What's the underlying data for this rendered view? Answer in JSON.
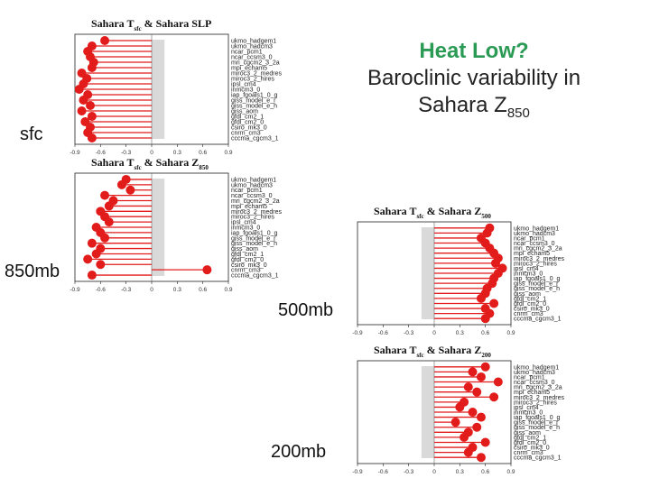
{
  "title": {
    "line1": "Heat Low?",
    "line2": "Baroclinic variability in",
    "line3_prefix": "Sahara Z",
    "line3_sub": "850"
  },
  "labels": {
    "sfc": "sfc",
    "mb850": "850mb",
    "mb500": "500mb",
    "mb200": "200mb"
  },
  "colors": {
    "stem": "#e21b1b",
    "dot": "#e21b1b",
    "band": "#d9d9d9",
    "title_green": "#2a9a55"
  },
  "chart_data": [
    {
      "type": "lollipop",
      "title_pre": "Sahara T",
      "title_sub1": "sfc",
      "title_mid": " & Sahara SLP",
      "title_sub2": "",
      "xlim": [
        -0.9,
        0.9
      ],
      "xticks": [
        "-0.9",
        "-0.6",
        "-0.3",
        "0",
        "0.3",
        "0.6",
        "0.9"
      ],
      "band": [
        0.0,
        0.15
      ],
      "models": [
        "ukmo_hadgem1",
        "ukmo_hadcm3",
        "ncar_pcm1",
        "ncar_ccsm3_0",
        "mri_cgcm2_3_2a",
        "mpi_echam5",
        "miroc3_2_medres",
        "miroc3_2_hires",
        "ipsl_cm4",
        "inmcm3_0",
        "iap_fgoals1_0_g",
        "giss_model_e_r",
        "giss_model_e_h",
        "giss_aom",
        "gfdl_cm2_1",
        "gfdl_cm2_0",
        "csiro_mk3_0",
        "cnrm_cm3",
        "cccma_cgcm3_1"
      ],
      "values": [
        -0.55,
        -0.7,
        -0.75,
        -0.72,
        -0.68,
        -0.7,
        -0.82,
        -0.76,
        -0.8,
        -0.85,
        -0.75,
        -0.8,
        -0.72,
        -0.82,
        -0.7,
        -0.78,
        -0.72,
        -0.75,
        -0.7
      ]
    },
    {
      "type": "lollipop",
      "title_pre": "Sahara T",
      "title_sub1": "sfc",
      "title_mid": " & Sahara Z",
      "title_sub2": "850",
      "xlim": [
        -0.9,
        0.9
      ],
      "xticks": [
        "-0.9",
        "-0.6",
        "-0.3",
        "0",
        "0.3",
        "0.6",
        "0.9"
      ],
      "band": [
        0.0,
        0.15
      ],
      "models": [
        "ukmo_hadgem1",
        "ukmo_hadcm3",
        "ncar_pcm1",
        "ncar_ccsm3_0",
        "mri_cgcm2_3_2a",
        "mpi_echam5",
        "miroc3_2_medres",
        "miroc3_2_hires",
        "ipsl_cm4",
        "inmcm3_0",
        "iap_fgoals1_0_g",
        "giss_model_e_r",
        "giss_model_e_h",
        "giss_aom",
        "gfdl_cm2_1",
        "gfdl_cm2_0",
        "csiro_mk3_0",
        "cnrm_cm3",
        "cccma_cgcm3_1"
      ],
      "values": [
        -0.3,
        -0.35,
        -0.25,
        -0.55,
        -0.45,
        -0.5,
        -0.6,
        -0.55,
        -0.5,
        -0.65,
        -0.6,
        -0.55,
        -0.7,
        -0.6,
        -0.65,
        -0.75,
        -0.6,
        0.65,
        -0.7
      ]
    },
    {
      "type": "lollipop",
      "title_pre": "Sahara T",
      "title_sub1": "sfc",
      "title_mid": " & Sahara Z",
      "title_sub2": "500",
      "xlim": [
        -0.9,
        0.9
      ],
      "xticks": [
        "-0.9",
        "-0.6",
        "-0.3",
        "0",
        "0.3",
        "0.6",
        "0.9"
      ],
      "band": [
        -0.15,
        0.0
      ],
      "models": [
        "ukmo_hadgem1",
        "ukmo_hadcm3",
        "ncar_pcm1",
        "ncar_ccsm3_0",
        "mri_cgcm2_3_2a",
        "mpi_echam5",
        "miroc3_2_medres",
        "miroc3_2_hires",
        "ipsl_cm4",
        "inmcm3_0",
        "iap_fgoals1_0_g",
        "giss_model_e_r",
        "giss_model_e_h",
        "giss_aom",
        "gfdl_cm2_1",
        "gfdl_cm2_0",
        "csiro_mk3_0",
        "cnrm_cm3",
        "cccma_cgcm3_1"
      ],
      "values": [
        0.65,
        0.62,
        0.55,
        0.6,
        0.65,
        0.7,
        0.75,
        0.72,
        0.8,
        0.75,
        0.7,
        0.68,
        0.62,
        0.6,
        0.55,
        0.7,
        0.6,
        0.65,
        0.6
      ]
    },
    {
      "type": "lollipop",
      "title_pre": "Sahara T",
      "title_sub1": "sfc",
      "title_mid": " & Sahara Z",
      "title_sub2": "200",
      "xlim": [
        -0.9,
        0.9
      ],
      "xticks": [
        "-0.9",
        "-0.6",
        "-0.3",
        "0",
        "0.3",
        "0.6",
        "0.9"
      ],
      "band": [
        -0.15,
        0.0
      ],
      "models": [
        "ukmo_hadgem1",
        "ukmo_hadcm3",
        "ncar_pcm1",
        "ncar_ccsm3_0",
        "mri_cgcm2_3_2a",
        "mpi_echam5",
        "miroc3_2_medres",
        "miroc3_2_hires",
        "ipsl_cm4",
        "inmcm3_0",
        "iap_fgoals1_0_g",
        "giss_model_e_r",
        "giss_model_e_h",
        "giss_aom",
        "gfdl_cm2_1",
        "gfdl_cm2_0",
        "csiro_mk3_0",
        "cnrm_cm3",
        "cccma_cgcm3_1"
      ],
      "values": [
        0.6,
        0.45,
        0.55,
        0.75,
        0.4,
        0.5,
        0.7,
        0.35,
        0.3,
        0.45,
        0.55,
        0.25,
        0.5,
        0.4,
        0.35,
        0.6,
        0.45,
        0.4,
        0.55
      ]
    }
  ]
}
